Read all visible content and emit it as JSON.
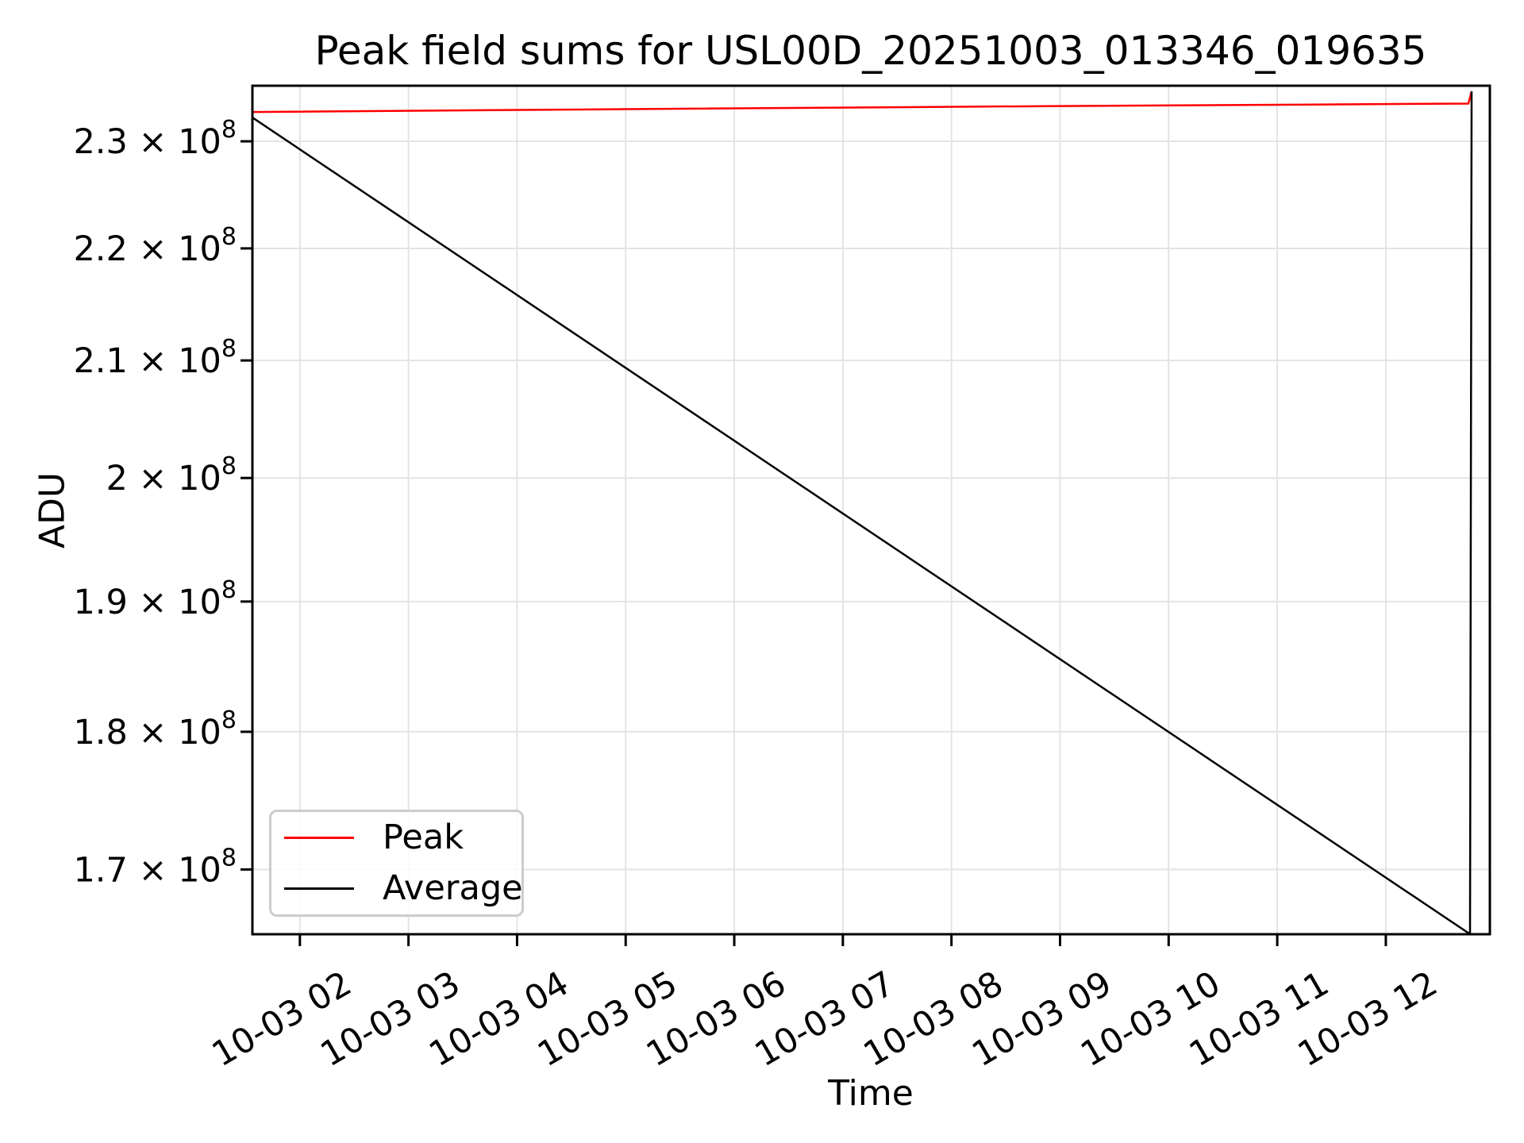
{
  "title": "Peak field sums for USL00D_20251003_013346_019635",
  "axes": {
    "xlabel": "Time",
    "ylabel": "ADU"
  },
  "legend": {
    "items": [
      {
        "label": "Peak",
        "color": "#ff0000"
      },
      {
        "label": "Average",
        "color": "#000000"
      }
    ]
  },
  "chart_data": {
    "type": "line",
    "title": "Peak field sums for USL00D_20251003_013346_019635",
    "xlabel": "Time",
    "ylabel": "ADU",
    "yscale": "log",
    "grid": true,
    "grid_color": "#e4e4e4",
    "legend_position": "lower left",
    "xlim_hours": [
      1.5628,
      12.958
    ],
    "ylim": [
      165490000,
      235370000
    ],
    "x_ticks": [
      {
        "hour": 2,
        "label": "10-03 02"
      },
      {
        "hour": 3,
        "label": "10-03 03"
      },
      {
        "hour": 4,
        "label": "10-03 04"
      },
      {
        "hour": 5,
        "label": "10-03 05"
      },
      {
        "hour": 6,
        "label": "10-03 06"
      },
      {
        "hour": 7,
        "label": "10-03 07"
      },
      {
        "hour": 8,
        "label": "10-03 08"
      },
      {
        "hour": 9,
        "label": "10-03 09"
      },
      {
        "hour": 10,
        "label": "10-03 10"
      },
      {
        "hour": 11,
        "label": "10-03 11"
      },
      {
        "hour": 12,
        "label": "10-03 12"
      }
    ],
    "y_ticks": [
      {
        "value": 230000000,
        "base": "2.3 × 10",
        "exp": "8"
      },
      {
        "value": 220000000,
        "base": "2.2 × 10",
        "exp": "8"
      },
      {
        "value": 210000000,
        "base": "2.1 × 10",
        "exp": "8"
      },
      {
        "value": 200000000,
        "base": "2 × 10",
        "exp": "8"
      },
      {
        "value": 190000000,
        "base": "1.9 × 10",
        "exp": "8"
      },
      {
        "value": 180000000,
        "base": "1.8 × 10",
        "exp": "8"
      },
      {
        "value": 170000000,
        "base": "1.7 × 10",
        "exp": "8"
      }
    ],
    "series": [
      {
        "name": "Peak",
        "color": "#ff0000",
        "x_hours": [
          1.5628,
          5.0,
          9.0,
          12.76,
          12.79
        ],
        "y": [
          232820000,
          233090000,
          233390000,
          233630000,
          234820000
        ]
      },
      {
        "name": "Average",
        "color": "#000000",
        "x_hours": [
          1.5628,
          12.775,
          12.79
        ],
        "y": [
          232280000,
          165500000,
          234820000
        ]
      }
    ]
  }
}
